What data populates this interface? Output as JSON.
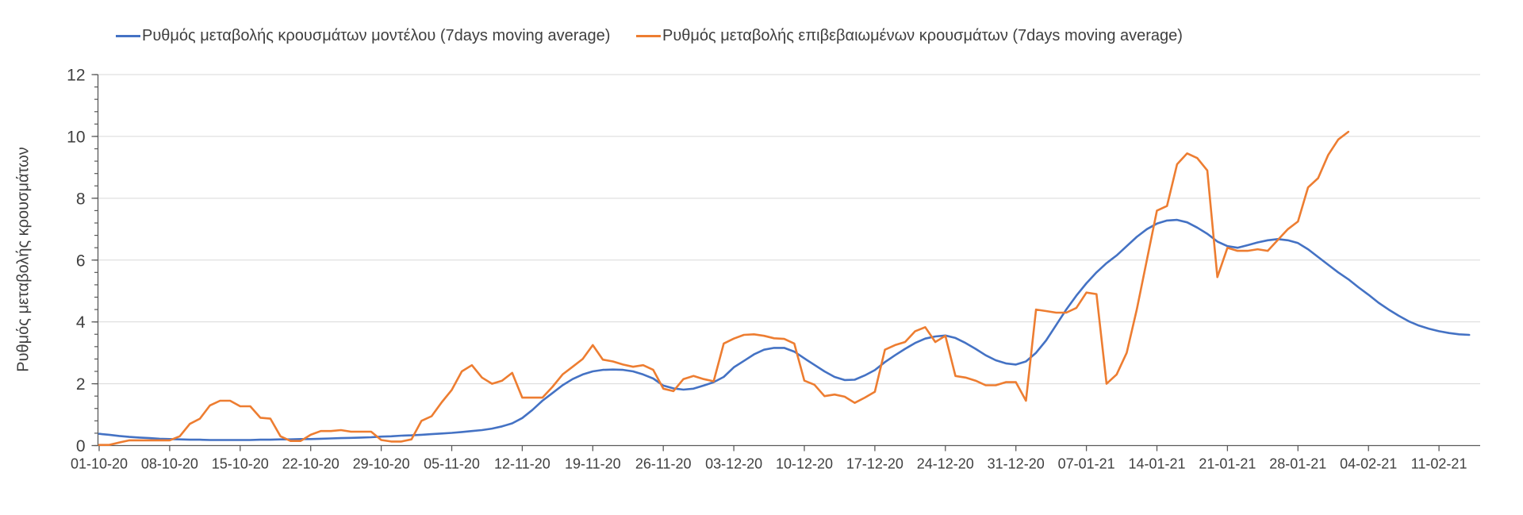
{
  "colors": {
    "model_line": "#4472C4",
    "confirmed_line": "#ED7D31",
    "gridline": "#D9D9D9",
    "axis": "#595959",
    "label_text": "#404040"
  },
  "y_axis": {
    "title": "Ρυθμός μεταβολής κρουσμάτων",
    "tick_labels": [
      "0",
      "2",
      "4",
      "6",
      "8",
      "10",
      "12"
    ]
  },
  "chart_data": {
    "type": "line",
    "title": "",
    "xlabel": "",
    "ylabel": "Ρυθμός μεταβολής κρουσμάτων",
    "ylim": [
      0,
      12
    ],
    "y_major_unit": 2,
    "y_minor_unit": 0.4,
    "grid": "horizontal-major",
    "legend_position": "top",
    "x_start_date": "01-10-20",
    "x_frequency": "daily",
    "x_tick_interval_days": 7,
    "x_tick_labels": [
      "01-10-20",
      "08-10-20",
      "15-10-20",
      "22-10-20",
      "29-10-20",
      "05-11-20",
      "12-11-20",
      "19-11-20",
      "26-11-20",
      "03-12-20",
      "10-12-20",
      "17-12-20",
      "24-12-20",
      "31-12-20",
      "07-01-21",
      "14-01-21",
      "21-01-21",
      "28-01-21",
      "04-02-21",
      "11-02-21"
    ],
    "series": [
      {
        "name": "Ρυθμός μεταβολής κρουσμάτων μοντέλου (7days moving average)",
        "color": "#4472C4",
        "start_date": "01-10-20",
        "values": [
          0.38,
          0.35,
          0.31,
          0.28,
          0.26,
          0.24,
          0.22,
          0.21,
          0.2,
          0.19,
          0.19,
          0.18,
          0.18,
          0.18,
          0.18,
          0.18,
          0.19,
          0.19,
          0.2,
          0.2,
          0.21,
          0.21,
          0.22,
          0.23,
          0.24,
          0.25,
          0.26,
          0.27,
          0.29,
          0.3,
          0.32,
          0.33,
          0.35,
          0.37,
          0.39,
          0.41,
          0.44,
          0.47,
          0.5,
          0.55,
          0.62,
          0.72,
          0.89,
          1.15,
          1.45,
          1.7,
          1.95,
          2.15,
          2.3,
          2.4,
          2.45,
          2.46,
          2.45,
          2.4,
          2.3,
          2.17,
          1.94,
          1.85,
          1.81,
          1.84,
          1.94,
          2.05,
          2.22,
          2.53,
          2.74,
          2.95,
          3.1,
          3.16,
          3.16,
          3.04,
          2.82,
          2.61,
          2.4,
          2.22,
          2.12,
          2.13,
          2.27,
          2.44,
          2.7,
          2.92,
          3.13,
          3.32,
          3.46,
          3.53,
          3.56,
          3.48,
          3.32,
          3.13,
          2.92,
          2.76,
          2.66,
          2.62,
          2.72,
          3.0,
          3.4,
          3.9,
          4.4,
          4.85,
          5.25,
          5.6,
          5.9,
          6.15,
          6.45,
          6.75,
          7.0,
          7.18,
          7.28,
          7.3,
          7.22,
          7.05,
          6.85,
          6.6,
          6.45,
          6.4,
          6.48,
          6.57,
          6.64,
          6.68,
          6.64,
          6.55,
          6.35,
          6.1,
          5.85,
          5.6,
          5.38,
          5.12,
          4.88,
          4.62,
          4.4,
          4.2,
          4.02,
          3.88,
          3.78,
          3.7,
          3.64,
          3.6,
          3.58
        ]
      },
      {
        "name": "Ρυθμός μεταβολής επιβεβαιωμένων κρουσμάτων (7days moving average)",
        "color": "#ED7D31",
        "start_date": "01-10-20",
        "values": [
          0.02,
          0.02,
          0.1,
          0.17,
          0.17,
          0.17,
          0.17,
          0.17,
          0.3,
          0.7,
          0.87,
          1.3,
          1.45,
          1.45,
          1.27,
          1.27,
          0.9,
          0.87,
          0.3,
          0.15,
          0.15,
          0.35,
          0.47,
          0.47,
          0.5,
          0.45,
          0.45,
          0.45,
          0.18,
          0.13,
          0.13,
          0.2,
          0.8,
          0.95,
          1.4,
          1.8,
          2.4,
          2.6,
          2.2,
          2.0,
          2.1,
          2.35,
          1.55,
          1.55,
          1.55,
          1.9,
          2.3,
          2.55,
          2.8,
          3.25,
          2.78,
          2.72,
          2.62,
          2.55,
          2.6,
          2.45,
          1.84,
          1.76,
          2.15,
          2.25,
          2.15,
          2.08,
          3.3,
          3.46,
          3.58,
          3.6,
          3.55,
          3.47,
          3.45,
          3.3,
          2.1,
          1.97,
          1.6,
          1.65,
          1.58,
          1.38,
          1.55,
          1.74,
          3.1,
          3.25,
          3.35,
          3.7,
          3.83,
          3.35,
          3.55,
          2.25,
          2.2,
          2.1,
          1.95,
          1.95,
          2.05,
          2.05,
          1.45,
          4.4,
          4.35,
          4.3,
          4.3,
          4.45,
          4.95,
          4.9,
          2.0,
          2.3,
          3.0,
          4.4,
          6.0,
          7.6,
          7.75,
          9.1,
          9.45,
          9.3,
          8.9,
          5.45,
          6.4,
          6.3,
          6.3,
          6.35,
          6.3,
          6.65,
          7.0,
          7.25,
          8.35,
          8.65,
          9.4,
          9.9,
          10.15
        ]
      }
    ]
  }
}
